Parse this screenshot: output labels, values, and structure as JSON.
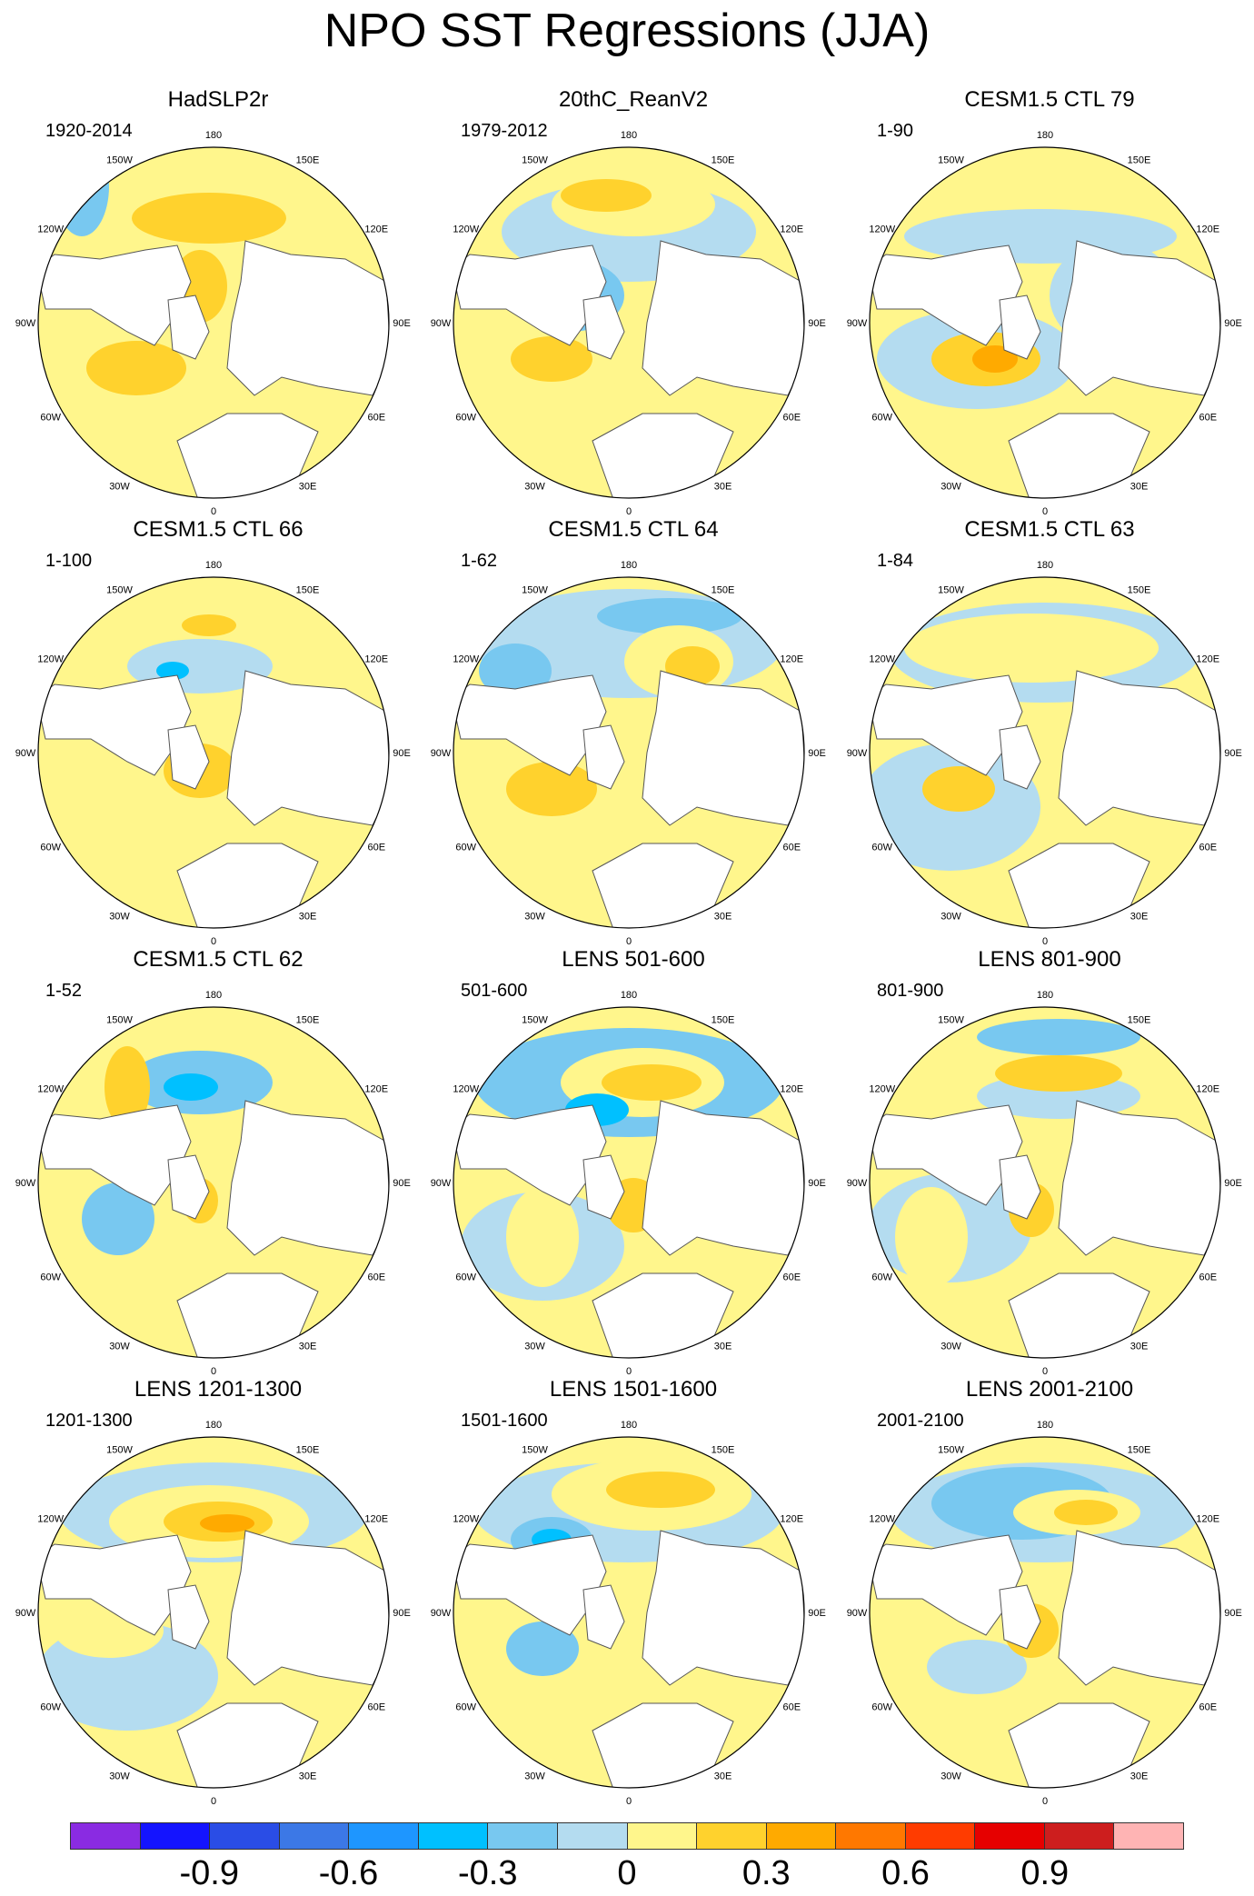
{
  "title": "NPO SST Regressions (JJA)",
  "lon_labels": [
    "180",
    "150E",
    "120E",
    "90E",
    "60E",
    "30E",
    "0",
    "30W",
    "60W",
    "90W",
    "120W",
    "150W"
  ],
  "panels": [
    {
      "title": "HadSLP2r",
      "period": "1920-2014"
    },
    {
      "title": "20thC_ReanV2",
      "period": "1979-2012"
    },
    {
      "title": "CESM1.5 CTL 79",
      "period": "1-90"
    },
    {
      "title": "CESM1.5 CTL 66",
      "period": "1-100"
    },
    {
      "title": "CESM1.5 CTL 64",
      "period": "1-62"
    },
    {
      "title": "CESM1.5 CTL 63",
      "period": "1-84"
    },
    {
      "title": "CESM1.5 CTL 62",
      "period": "1-52"
    },
    {
      "title": "LENS 501-600",
      "period": "501-600"
    },
    {
      "title": "LENS 801-900",
      "period": "801-900"
    },
    {
      "title": "LENS 1201-1300",
      "period": "1201-1300"
    },
    {
      "title": "LENS 1501-1600",
      "period": "1501-1600"
    },
    {
      "title": "LENS 2001-2100",
      "period": "2001-2100"
    }
  ],
  "colorbar": {
    "colors": [
      "#8a2be2",
      "#1414ff",
      "#2a4de6",
      "#3c78e6",
      "#1e96ff",
      "#00c0ff",
      "#78c8f0",
      "#b4dcf0",
      "#fff68c",
      "#ffd22d",
      "#ffaa00",
      "#ff7800",
      "#ff3c00",
      "#e60000",
      "#cd1e1e",
      "#ffb4b4"
    ],
    "labels": [
      "-0.9",
      "-0.6",
      "-0.3",
      "0",
      "0.3",
      "0.6",
      "0.9"
    ]
  }
}
